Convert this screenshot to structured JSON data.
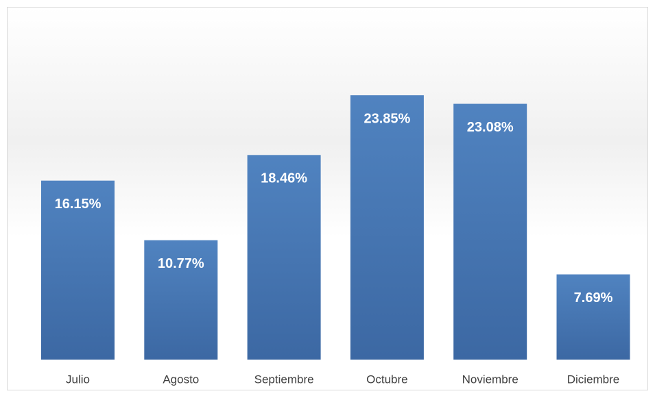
{
  "chart_data": {
    "type": "bar",
    "categories": [
      "Julio",
      "Agosto",
      "Septiembre",
      "Octubre",
      "Noviembre",
      "Diciembre"
    ],
    "values": [
      16.15,
      10.77,
      18.46,
      23.85,
      23.08,
      7.69
    ],
    "value_labels": [
      "16.15%",
      "10.77%",
      "18.46%",
      "23.85%",
      "23.08%",
      "7.69%"
    ],
    "color": "#4a7ebb"
  }
}
